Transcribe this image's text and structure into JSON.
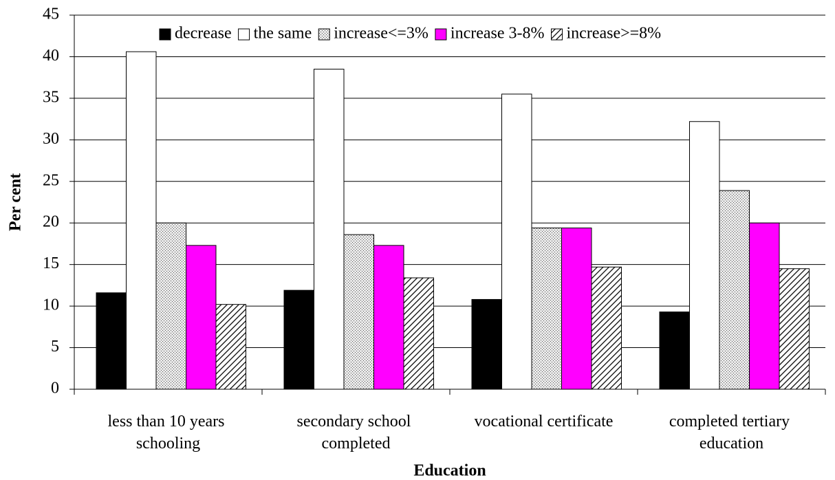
{
  "chart_data": {
    "type": "bar",
    "x_label": "Education",
    "y_label": "Per cent",
    "categories": [
      "less than 10 years schooling",
      "secondary school completed",
      "vocational certificate",
      "completed tertiary education"
    ],
    "series": [
      {
        "name": "decrease",
        "color": "#000000",
        "values": [
          11.6,
          11.9,
          10.8,
          9.3
        ]
      },
      {
        "name": "the same",
        "color": "#ffffff",
        "values": [
          40.6,
          38.5,
          35.5,
          32.2
        ]
      },
      {
        "name": "increase<=3%",
        "color": "#d8d8d8",
        "pattern": "dots",
        "values": [
          20,
          18.6,
          19.4,
          23.9
        ]
      },
      {
        "name": "increase 3-8%",
        "color": "#ff00ff",
        "values": [
          17.3,
          17.3,
          19.4,
          20
        ]
      },
      {
        "name": "increase>=8%",
        "color": "#ffffff",
        "pattern": "hatch",
        "values": [
          10.2,
          13.4,
          14.7,
          14.5
        ]
      }
    ],
    "ylim": [
      0,
      45
    ],
    "yticks": [
      0,
      5,
      10,
      15,
      20,
      25,
      30,
      35,
      40,
      45
    ],
    "grid": true,
    "legend": "top"
  }
}
